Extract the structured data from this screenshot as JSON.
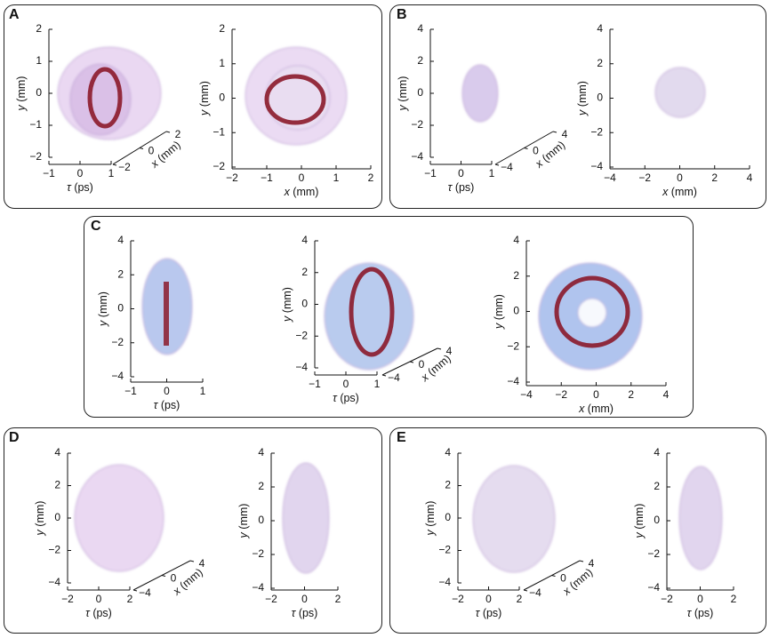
{
  "panels": [
    {
      "label": "A"
    },
    {
      "label": "B"
    },
    {
      "label": "C"
    },
    {
      "label": "D"
    },
    {
      "label": "E"
    }
  ],
  "axes": {
    "y_label_italic": "y",
    "y_label_unit": " (mm)",
    "x_label_italic": "x",
    "x_label_unit": " (mm)",
    "tau_label_symbol": "τ",
    "tau_label_unit": " (ps)"
  },
  "colors": {
    "pink_lavender": "#d8b8e8",
    "dark_red": "#8b1a2a",
    "blue": "#4a72d0",
    "gray": "#9a9a9a"
  },
  "ticks": {
    "A3d": {
      "y": [
        "2",
        "1",
        "0",
        "−1",
        "−2"
      ],
      "tau": [
        "−1",
        "0",
        "1"
      ],
      "x": [
        "2",
        "0",
        "−2"
      ]
    },
    "A2d": {
      "y": [
        "2",
        "1",
        "0",
        "−1",
        "−2"
      ],
      "x": [
        "−2",
        "−1",
        "0",
        "1",
        "2"
      ]
    },
    "B3d": {
      "y": [
        "4",
        "2",
        "0",
        "−2",
        "−4"
      ],
      "tau": [
        "−1",
        "0",
        "1"
      ],
      "x": [
        "4",
        "0",
        "−4"
      ]
    },
    "B2d": {
      "y": [
        "4",
        "2",
        "0",
        "−2",
        "−4"
      ],
      "x": [
        "−4",
        "−2",
        "0",
        "2",
        "4"
      ]
    },
    "C1": {
      "y": [
        "4",
        "2",
        "0",
        "−2",
        "−4"
      ],
      "tau": [
        "−1",
        "0",
        "1"
      ]
    },
    "C2": {
      "y": [
        "4",
        "2",
        "0",
        "−2",
        "−4"
      ],
      "tau": [
        "−1",
        "0",
        "1"
      ],
      "x": [
        "4",
        "0",
        "−4"
      ]
    },
    "C3": {
      "y": [
        "4",
        "2",
        "0",
        "−2",
        "−4"
      ],
      "x": [
        "−4",
        "−2",
        "0",
        "2",
        "4"
      ]
    },
    "D3d": {
      "y": [
        "4",
        "2",
        "0",
        "−2",
        "−4"
      ],
      "tau": [
        "−2",
        "0",
        "2"
      ],
      "x": [
        "4",
        "0",
        "−4"
      ]
    },
    "D2d": {
      "y": [
        "4",
        "2",
        "0",
        "−2",
        "−4"
      ],
      "tau": [
        "−2",
        "0",
        "2"
      ]
    },
    "E3d": {
      "y": [
        "4",
        "2",
        "0",
        "−2",
        "−4"
      ],
      "tau": [
        "−2",
        "0",
        "2"
      ],
      "x": [
        "4",
        "0",
        "−4"
      ]
    },
    "E2d": {
      "y": [
        "4",
        "2",
        "0",
        "−2",
        "−4"
      ],
      "tau": [
        "−2",
        "0",
        "2"
      ]
    }
  }
}
